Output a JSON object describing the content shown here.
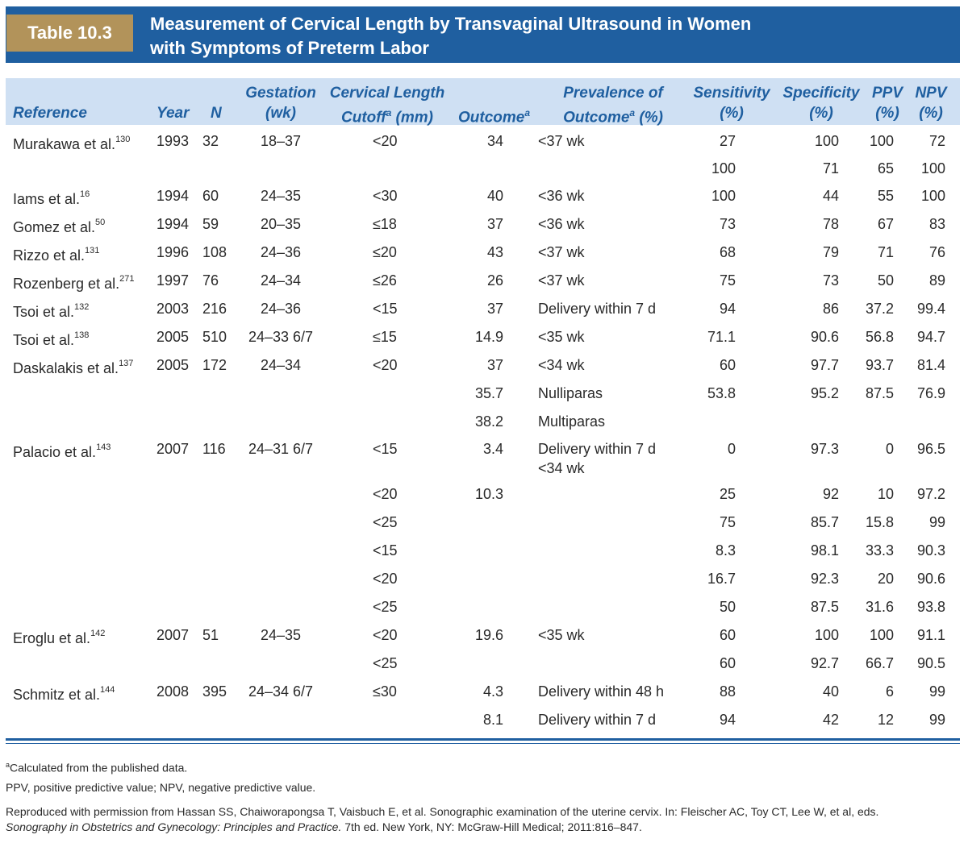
{
  "table_label": "Table 10.3",
  "title": {
    "line1": "Measurement of Cervical Length by Transvaginal Ultrasound in Women",
    "line2": "with Symptoms of Preterm Labor"
  },
  "headers": {
    "reference": "Reference",
    "year": "Year",
    "n": "N",
    "gestation_1": "Gestation",
    "gestation_2": "(wk)",
    "cl_1": "Cervical Length",
    "cl_2a": "Cutoff",
    "cl_2sup": "a",
    "cl_2b": " (mm)",
    "outcome": "Outcome",
    "outcome_sup": "a",
    "prev_1": "Prevalence of",
    "prev_2a": "Outcome",
    "prev_2sup": "a",
    "prev_2b": " (%)",
    "sens_1": "Sensitivity",
    "sens_2": "(%)",
    "spec_1": "Specificity",
    "spec_2": "(%)",
    "ppv_1": "PPV",
    "ppv_2": "(%)",
    "npv_1": "NPV",
    "npv_2": "(%)"
  },
  "rows": [
    {
      "ref": "Murakawa et al.",
      "sup": "130",
      "year": "1993",
      "n": "32",
      "gest": "18–37",
      "cutoff": "<20",
      "outcome": "34",
      "prev": "<37 wk",
      "sens": "27",
      "spec": "100",
      "ppv": "100",
      "npv": "72"
    },
    {
      "ref": "",
      "sup": "",
      "year": "",
      "n": "",
      "gest": "",
      "cutoff": "",
      "outcome": "",
      "prev": "",
      "sens": "100",
      "spec": "71",
      "ppv": "65",
      "npv": "100"
    },
    {
      "ref": "Iams et al.",
      "sup": "16",
      "year": "1994",
      "n": "60",
      "gest": "24–35",
      "cutoff": "<30",
      "outcome": "40",
      "prev": "<36 wk",
      "sens": "100",
      "spec": "44",
      "ppv": "55",
      "npv": "100"
    },
    {
      "ref": "Gomez et al.",
      "sup": "50",
      "year": "1994",
      "n": "59",
      "gest": "20–35",
      "cutoff": "≤18",
      "outcome": "37",
      "prev": "<36 wk",
      "sens": "73",
      "spec": "78",
      "ppv": "67",
      "npv": "83"
    },
    {
      "ref": "Rizzo et al.",
      "sup": "131",
      "year": "1996",
      "n": "108",
      "gest": "24–36",
      "cutoff": "≤20",
      "outcome": "43",
      "prev": "<37 wk",
      "sens": "68",
      "spec": "79",
      "ppv": "71",
      "npv": "76"
    },
    {
      "ref": "Rozenberg et al.",
      "sup": "271",
      "year": "1997",
      "n": "76",
      "gest": "24–34",
      "cutoff": "≤26",
      "outcome": "26",
      "prev": "<37 wk",
      "sens": "75",
      "spec": "73",
      "ppv": "50",
      "npv": "89"
    },
    {
      "ref": "Tsoi et al.",
      "sup": "132",
      "year": "2003",
      "n": "216",
      "gest": "24–36",
      "cutoff": "<15",
      "outcome": "37",
      "prev": "Delivery within 7 d",
      "sens": "94",
      "spec": "86",
      "ppv": "37.2",
      "npv": "99.4"
    },
    {
      "ref": "Tsoi et al.",
      "sup": "138",
      "year": "2005",
      "n": "510",
      "gest": "24–33 6/7",
      "cutoff": "≤15",
      "outcome": "14.9",
      "prev": "<35 wk",
      "sens": "71.1",
      "spec": "90.6",
      "ppv": "56.8",
      "npv": "94.7"
    },
    {
      "ref": "Daskalakis et al.",
      "sup": "137",
      "year": "2005",
      "n": "172",
      "gest": "24–34",
      "cutoff": "<20",
      "outcome": "37",
      "prev": "<34 wk",
      "sens": "60",
      "spec": "97.7",
      "ppv": "93.7",
      "npv": "81.4"
    },
    {
      "ref": "",
      "sup": "",
      "year": "",
      "n": "",
      "gest": "",
      "cutoff": "",
      "outcome": "35.7",
      "prev": "Nulliparas",
      "sens": "53.8",
      "spec": "95.2",
      "ppv": "87.5",
      "npv": "76.9"
    },
    {
      "ref": "",
      "sup": "",
      "year": "",
      "n": "",
      "gest": "",
      "cutoff": "",
      "outcome": "38.2",
      "prev": "Multiparas",
      "sens": "",
      "spec": "",
      "ppv": "",
      "npv": ""
    },
    {
      "ref": "Palacio et al.",
      "sup": "143",
      "year": "2007",
      "n": "116",
      "gest": "24–31 6/7",
      "cutoff": "<15",
      "outcome": "3.4",
      "prev": "Delivery within 7 d",
      "prev2": "<34 wk",
      "sens": "0",
      "spec": "97.3",
      "ppv": "0",
      "npv": "96.5"
    },
    {
      "ref": "",
      "sup": "",
      "year": "",
      "n": "",
      "gest": "",
      "cutoff": "<20",
      "outcome": "10.3",
      "prev": "",
      "sens": "25",
      "spec": "92",
      "ppv": "10",
      "npv": "97.2"
    },
    {
      "ref": "",
      "sup": "",
      "year": "",
      "n": "",
      "gest": "",
      "cutoff": "<25",
      "outcome": "",
      "prev": "",
      "sens": "75",
      "spec": "85.7",
      "ppv": "15.8",
      "npv": "99"
    },
    {
      "ref": "",
      "sup": "",
      "year": "",
      "n": "",
      "gest": "",
      "cutoff": "<15",
      "outcome": "",
      "prev": "",
      "sens": "8.3",
      "spec": "98.1",
      "ppv": "33.3",
      "npv": "90.3"
    },
    {
      "ref": "",
      "sup": "",
      "year": "",
      "n": "",
      "gest": "",
      "cutoff": "<20",
      "outcome": "",
      "prev": "",
      "sens": "16.7",
      "spec": "92.3",
      "ppv": "20",
      "npv": "90.6"
    },
    {
      "ref": "",
      "sup": "",
      "year": "",
      "n": "",
      "gest": "",
      "cutoff": "<25",
      "outcome": "",
      "prev": "",
      "sens": "50",
      "spec": "87.5",
      "ppv": "31.6",
      "npv": "93.8"
    },
    {
      "ref": "Eroglu et al.",
      "sup": "142",
      "year": "2007",
      "n": "51",
      "gest": "24–35",
      "cutoff": "<20",
      "outcome": "19.6",
      "prev": "<35 wk",
      "sens": "60",
      "spec": "100",
      "ppv": "100",
      "npv": "91.1"
    },
    {
      "ref": "",
      "sup": "",
      "year": "",
      "n": "",
      "gest": "",
      "cutoff": "<25",
      "outcome": "",
      "prev": "",
      "sens": "60",
      "spec": "92.7",
      "ppv": "66.7",
      "npv": "90.5"
    },
    {
      "ref": "Schmitz et al.",
      "sup": "144",
      "year": "2008",
      "n": "395",
      "gest": "24–34 6/7",
      "cutoff": "≤30",
      "outcome": "4.3",
      "prev": "Delivery within 48 h",
      "sens": "88",
      "spec": "40",
      "ppv": "6",
      "npv": "99"
    },
    {
      "ref": "",
      "sup": "",
      "year": "",
      "n": "",
      "gest": "",
      "cutoff": "",
      "outcome": "8.1",
      "prev": "Delivery within 7 d",
      "sens": "94",
      "spec": "42",
      "ppv": "12",
      "npv": "99"
    }
  ],
  "footnotes": {
    "a_sup": "a",
    "a_text": "Calculated from the published data.",
    "abbrev": "PPV, positive predictive value; NPV, negative predictive value.",
    "source_1": "Reproduced with permission from Hassan SS, Chaiworapongsa T, Vaisbuch E, et al. Sonographic examination of the uterine cervix. In: Fleischer AC, Toy CT, Lee W, et al, eds.",
    "source_2_italic": "Sonography in Obstetrics and Gynecology: Principles and Practice.",
    "source_2_rest": " 7th ed. New York, NY: McGraw-Hill Medical; 2011:816–847."
  },
  "colors": {
    "banner": "#1f5fa0",
    "label_bg": "#b2935a",
    "header_bg": "#cfe0f3",
    "header_text": "#1f5fa0"
  }
}
